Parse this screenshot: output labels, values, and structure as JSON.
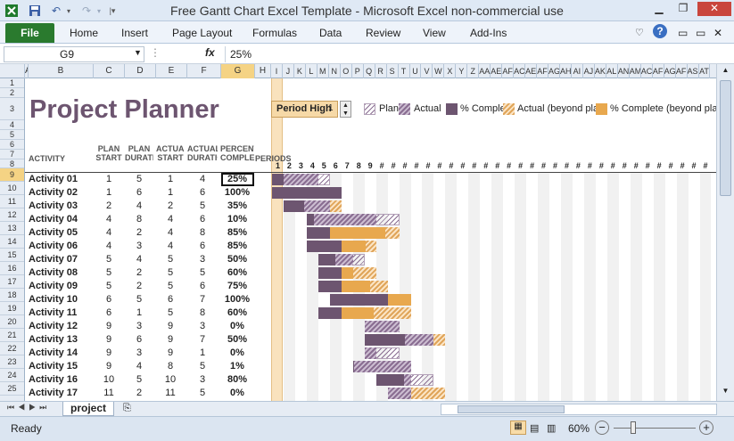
{
  "window": {
    "title": "Free Gantt Chart Excel Template  -  Microsoft Excel non-commercial use"
  },
  "ribbon": {
    "file": "File",
    "tabs": [
      "Home",
      "Insert",
      "Page Layout",
      "Formulas",
      "Data",
      "Review",
      "View",
      "Add-Ins"
    ]
  },
  "formula_bar": {
    "name_box": "G9",
    "fx": "fx",
    "value": "25%"
  },
  "columns": [
    "A",
    "B",
    "C",
    "D",
    "E",
    "F",
    "G",
    "H",
    "I",
    "J",
    "K",
    "L",
    "M",
    "N",
    "O",
    "P",
    "Q",
    "R",
    "S",
    "T",
    "U",
    "V",
    "W",
    "X",
    "Y",
    "Z",
    "AA",
    "AE",
    "AF",
    "AC",
    "AE",
    "AF",
    "AG",
    "AH",
    "AI",
    "AJ",
    "AK",
    "AL",
    "AN",
    "AM",
    "AC",
    "AF",
    "AG",
    "AF",
    "AS",
    "AT"
  ],
  "rows": [
    "1",
    "2",
    "3",
    "4",
    "5",
    "6",
    "7",
    "8",
    "9",
    "10",
    "11",
    "12",
    "13",
    "14",
    "15",
    "16",
    "17",
    "18",
    "19",
    "20",
    "21",
    "22",
    "23",
    "24",
    "25"
  ],
  "sheet": {
    "title": "Project Planner",
    "period_label": "Period High",
    "period_value": "1",
    "legend": [
      "Plan",
      "Actual",
      "% Complete",
      "Actual (beyond plan)",
      "% Complete (beyond plan)"
    ],
    "headers": {
      "activity": "ACTIVITY",
      "plan_start": "PLAN START",
      "plan_duration": "PLAN DURATION",
      "actual_start": "ACTUAL START",
      "actual_duration": "ACTUAL DURATION",
      "percent_complete": "PERCENT COMPLETE",
      "periods": "PERIODS"
    },
    "period_numbers": [
      "1",
      "2",
      "3",
      "4",
      "5",
      "6",
      "7",
      "8",
      "9"
    ],
    "period_overflow": "#",
    "activities": [
      {
        "name": "Activity 01",
        "ps": 1,
        "pd": 5,
        "as": 1,
        "ad": 4,
        "pct": "25%",
        "pf": 0.25
      },
      {
        "name": "Activity 02",
        "ps": 1,
        "pd": 6,
        "as": 1,
        "ad": 6,
        "pct": "100%",
        "pf": 1.0
      },
      {
        "name": "Activity 03",
        "ps": 2,
        "pd": 4,
        "as": 2,
        "ad": 5,
        "pct": "35%",
        "pf": 0.35
      },
      {
        "name": "Activity 04",
        "ps": 4,
        "pd": 8,
        "as": 4,
        "ad": 6,
        "pct": "10%",
        "pf": 0.1
      },
      {
        "name": "Activity 05",
        "ps": 4,
        "pd": 2,
        "as": 4,
        "ad": 8,
        "pct": "85%",
        "pf": 0.85
      },
      {
        "name": "Activity 06",
        "ps": 4,
        "pd": 3,
        "as": 4,
        "ad": 6,
        "pct": "85%",
        "pf": 0.85
      },
      {
        "name": "Activity 07",
        "ps": 5,
        "pd": 4,
        "as": 5,
        "ad": 3,
        "pct": "50%",
        "pf": 0.5
      },
      {
        "name": "Activity 08",
        "ps": 5,
        "pd": 2,
        "as": 5,
        "ad": 5,
        "pct": "60%",
        "pf": 0.6
      },
      {
        "name": "Activity 09",
        "ps": 5,
        "pd": 2,
        "as": 5,
        "ad": 6,
        "pct": "75%",
        "pf": 0.75
      },
      {
        "name": "Activity 10",
        "ps": 6,
        "pd": 5,
        "as": 6,
        "ad": 7,
        "pct": "100%",
        "pf": 1.0
      },
      {
        "name": "Activity 11",
        "ps": 6,
        "pd": 1,
        "as": 5,
        "ad": 8,
        "pct": "60%",
        "pf": 0.6
      },
      {
        "name": "Activity 12",
        "ps": 9,
        "pd": 3,
        "as": 9,
        "ad": 3,
        "pct": "0%",
        "pf": 0
      },
      {
        "name": "Activity 13",
        "ps": 9,
        "pd": 6,
        "as": 9,
        "ad": 7,
        "pct": "50%",
        "pf": 0.5
      },
      {
        "name": "Activity 14",
        "ps": 9,
        "pd": 3,
        "as": 9,
        "ad": 1,
        "pct": "0%",
        "pf": 0
      },
      {
        "name": "Activity 15",
        "ps": 9,
        "pd": 4,
        "as": 8,
        "ad": 5,
        "pct": "1%",
        "pf": 0.01
      },
      {
        "name": "Activity 16",
        "ps": 10,
        "pd": 5,
        "as": 10,
        "ad": 3,
        "pct": "80%",
        "pf": 0.8
      },
      {
        "name": "Activity 17",
        "ps": 11,
        "pd": 2,
        "as": 11,
        "ad": 5,
        "pct": "0%",
        "pf": 0
      }
    ]
  },
  "sheet_tabs": {
    "active": "project"
  },
  "status": {
    "ready": "Ready",
    "zoom": "60%"
  },
  "colors": {
    "plan": "#8a6e92",
    "complete": "#6d5570",
    "beyond": "#e8a84e",
    "title": "#6d5570",
    "file_tab": "#2a7a2e"
  }
}
